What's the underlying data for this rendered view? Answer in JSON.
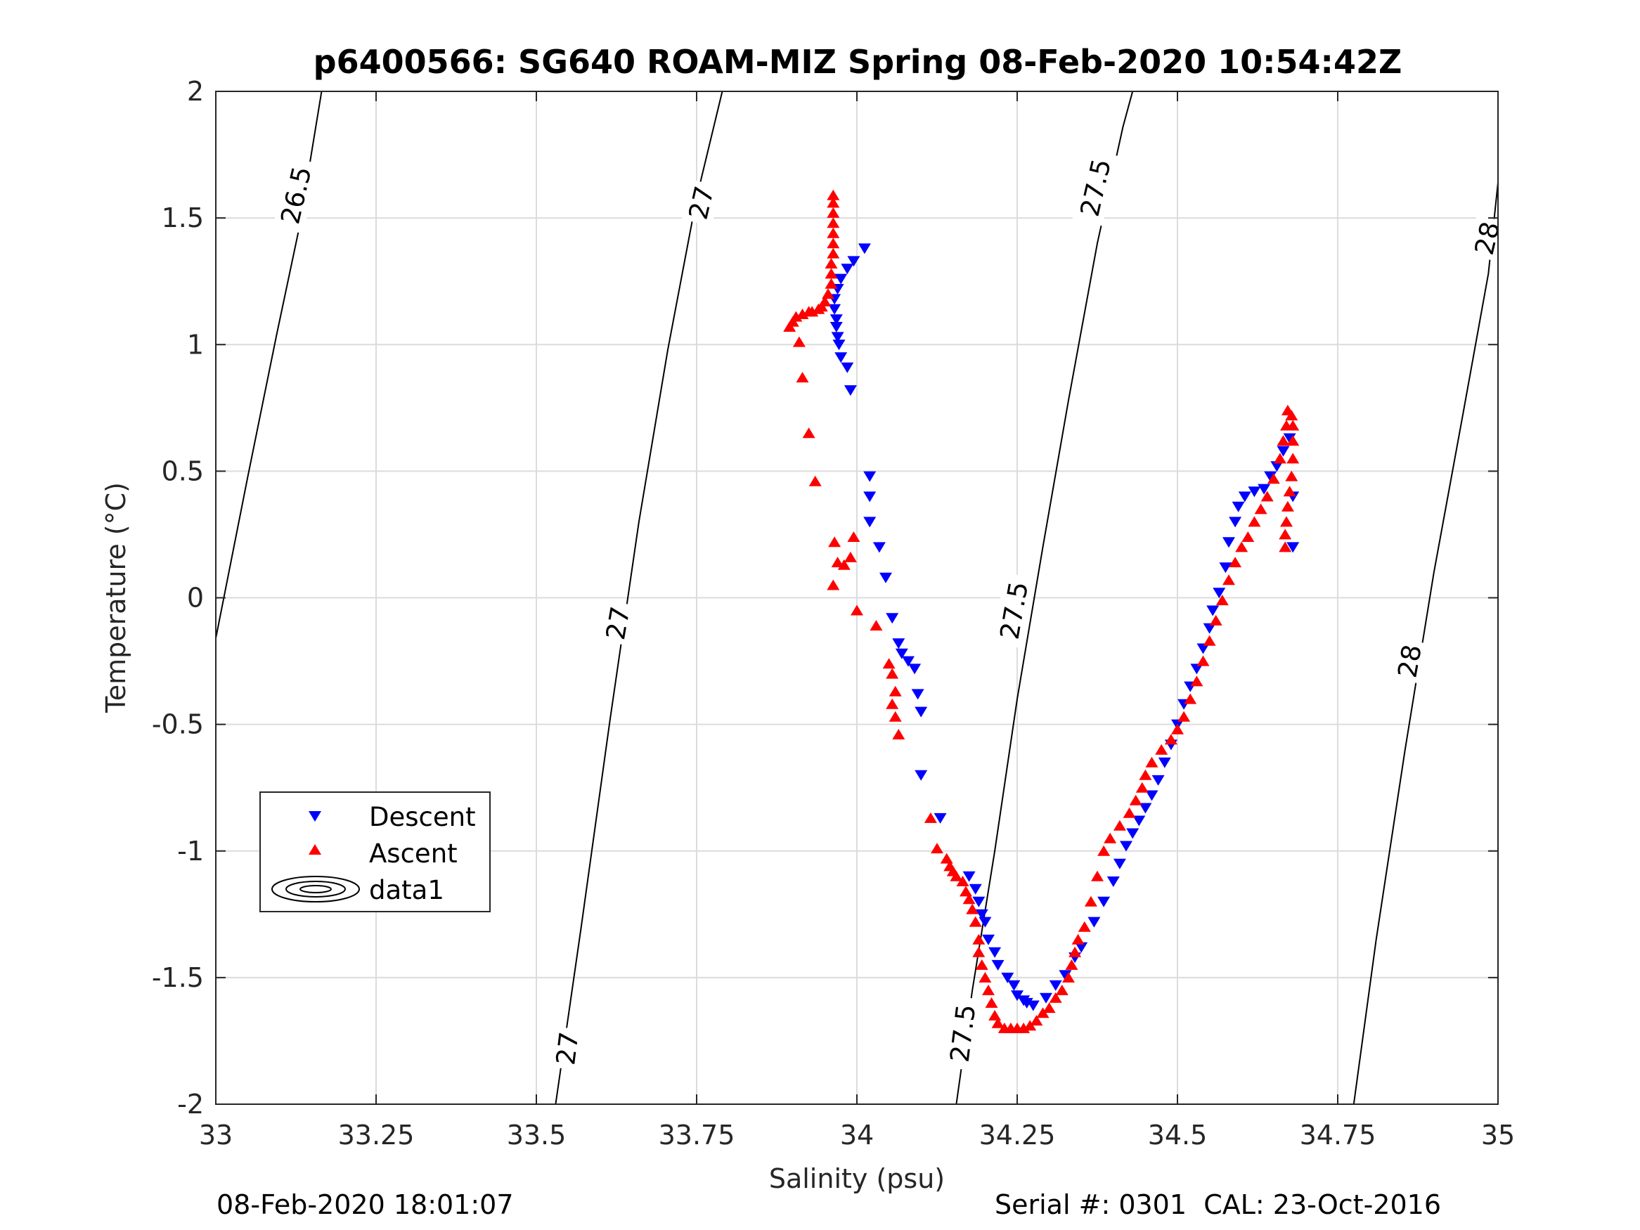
{
  "chart_data": {
    "type": "scatter",
    "title": "p6400566: SG640 ROAM-MIZ Spring 08-Feb-2020 10:54:42Z",
    "xlabel": "Salinity (psu)",
    "ylabel": "Temperature (°C)",
    "xlim": [
      33,
      35
    ],
    "ylim": [
      -2,
      2
    ],
    "xticks": [
      33,
      33.25,
      33.5,
      33.75,
      34,
      34.25,
      34.5,
      34.75,
      35
    ],
    "xtick_labels": [
      "33",
      "33.25",
      "33.5",
      "33.75",
      "34",
      "34.25",
      "34.5",
      "34.75",
      "35"
    ],
    "yticks": [
      -2,
      -1.5,
      -1,
      -0.5,
      0,
      0.5,
      1,
      1.5,
      2
    ],
    "ytick_labels": [
      "-2",
      "-1.5",
      "-1",
      "-0.5",
      "0",
      "0.5",
      "1",
      "1.5",
      "2"
    ],
    "grid": true,
    "legend_position": "lower-left",
    "series": [
      {
        "name": "Descent",
        "marker": "triangle-down",
        "color": "#0000ff",
        "points": [
          [
            34.012,
            1.38
          ],
          [
            33.995,
            1.33
          ],
          [
            33.985,
            1.3
          ],
          [
            33.975,
            1.26
          ],
          [
            33.97,
            1.22
          ],
          [
            33.965,
            1.18
          ],
          [
            33.965,
            1.14
          ],
          [
            33.968,
            1.1
          ],
          [
            33.968,
            1.07
          ],
          [
            33.97,
            1.03
          ],
          [
            33.972,
            1.0
          ],
          [
            33.975,
            0.95
          ],
          [
            33.985,
            0.91
          ],
          [
            33.99,
            0.82
          ],
          [
            34.02,
            0.48
          ],
          [
            34.02,
            0.4
          ],
          [
            34.02,
            0.3
          ],
          [
            34.035,
            0.2
          ],
          [
            34.045,
            0.08
          ],
          [
            34.055,
            -0.08
          ],
          [
            34.065,
            -0.18
          ],
          [
            34.07,
            -0.22
          ],
          [
            34.08,
            -0.25
          ],
          [
            34.09,
            -0.28
          ],
          [
            34.095,
            -0.38
          ],
          [
            34.1,
            -0.45
          ],
          [
            34.1,
            -0.7
          ],
          [
            34.13,
            -0.87
          ],
          [
            34.175,
            -1.1
          ],
          [
            34.185,
            -1.15
          ],
          [
            34.19,
            -1.2
          ],
          [
            34.195,
            -1.25
          ],
          [
            34.2,
            -1.28
          ],
          [
            34.205,
            -1.35
          ],
          [
            34.215,
            -1.4
          ],
          [
            34.22,
            -1.45
          ],
          [
            34.235,
            -1.5
          ],
          [
            34.245,
            -1.53
          ],
          [
            34.25,
            -1.57
          ],
          [
            34.26,
            -1.59
          ],
          [
            34.265,
            -1.6
          ],
          [
            34.275,
            -1.61
          ],
          [
            34.295,
            -1.58
          ],
          [
            34.31,
            -1.53
          ],
          [
            34.325,
            -1.49
          ],
          [
            34.34,
            -1.42
          ],
          [
            34.35,
            -1.38
          ],
          [
            34.37,
            -1.28
          ],
          [
            34.385,
            -1.2
          ],
          [
            34.4,
            -1.12
          ],
          [
            34.41,
            -1.05
          ],
          [
            34.42,
            -0.98
          ],
          [
            34.43,
            -0.93
          ],
          [
            34.44,
            -0.88
          ],
          [
            34.45,
            -0.83
          ],
          [
            34.46,
            -0.78
          ],
          [
            34.47,
            -0.72
          ],
          [
            34.48,
            -0.65
          ],
          [
            34.49,
            -0.58
          ],
          [
            34.5,
            -0.5
          ],
          [
            34.51,
            -0.42
          ],
          [
            34.52,
            -0.35
          ],
          [
            34.53,
            -0.28
          ],
          [
            34.54,
            -0.2
          ],
          [
            34.55,
            -0.12
          ],
          [
            34.555,
            -0.05
          ],
          [
            34.565,
            0.02
          ],
          [
            34.575,
            0.12
          ],
          [
            34.58,
            0.22
          ],
          [
            34.59,
            0.3
          ],
          [
            34.595,
            0.36
          ],
          [
            34.605,
            0.4
          ],
          [
            34.62,
            0.42
          ],
          [
            34.635,
            0.43
          ],
          [
            34.645,
            0.48
          ],
          [
            34.655,
            0.52
          ],
          [
            34.665,
            0.58
          ],
          [
            34.675,
            0.63
          ],
          [
            34.68,
            0.4
          ],
          [
            34.68,
            0.2
          ]
        ]
      },
      {
        "name": "Ascent",
        "marker": "triangle-up",
        "color": "#ff0000",
        "points": [
          [
            33.963,
            1.59
          ],
          [
            33.963,
            1.56
          ],
          [
            33.963,
            1.52
          ],
          [
            33.963,
            1.48
          ],
          [
            33.963,
            1.44
          ],
          [
            33.963,
            1.4
          ],
          [
            33.963,
            1.36
          ],
          [
            33.96,
            1.32
          ],
          [
            33.96,
            1.28
          ],
          [
            33.96,
            1.24
          ],
          [
            33.955,
            1.2
          ],
          [
            33.95,
            1.17
          ],
          [
            33.945,
            1.15
          ],
          [
            33.94,
            1.14
          ],
          [
            33.93,
            1.13
          ],
          [
            33.925,
            1.13
          ],
          [
            33.915,
            1.12
          ],
          [
            33.905,
            1.11
          ],
          [
            33.9,
            1.09
          ],
          [
            33.895,
            1.07
          ],
          [
            33.91,
            1.01
          ],
          [
            33.915,
            0.87
          ],
          [
            33.925,
            0.65
          ],
          [
            33.935,
            0.46
          ],
          [
            33.965,
            0.22
          ],
          [
            33.97,
            0.14
          ],
          [
            33.98,
            0.13
          ],
          [
            33.99,
            0.16
          ],
          [
            33.995,
            0.24
          ],
          [
            33.963,
            0.05
          ],
          [
            34.0,
            -0.05
          ],
          [
            34.03,
            -0.11
          ],
          [
            34.05,
            -0.26
          ],
          [
            34.055,
            -0.3
          ],
          [
            34.06,
            -0.37
          ],
          [
            34.055,
            -0.42
          ],
          [
            34.06,
            -0.47
          ],
          [
            34.065,
            -0.54
          ],
          [
            34.115,
            -0.87
          ],
          [
            34.125,
            -0.99
          ],
          [
            34.14,
            -1.03
          ],
          [
            34.145,
            -1.06
          ],
          [
            34.15,
            -1.08
          ],
          [
            34.155,
            -1.1
          ],
          [
            34.165,
            -1.12
          ],
          [
            34.17,
            -1.16
          ],
          [
            34.175,
            -1.19
          ],
          [
            34.18,
            -1.23
          ],
          [
            34.185,
            -1.28
          ],
          [
            34.19,
            -1.35
          ],
          [
            34.19,
            -1.4
          ],
          [
            34.195,
            -1.45
          ],
          [
            34.2,
            -1.5
          ],
          [
            34.205,
            -1.55
          ],
          [
            34.21,
            -1.6
          ],
          [
            34.215,
            -1.65
          ],
          [
            34.22,
            -1.68
          ],
          [
            34.23,
            -1.7
          ],
          [
            34.24,
            -1.7
          ],
          [
            34.25,
            -1.7
          ],
          [
            34.26,
            -1.7
          ],
          [
            34.27,
            -1.69
          ],
          [
            34.28,
            -1.67
          ],
          [
            34.29,
            -1.64
          ],
          [
            34.3,
            -1.62
          ],
          [
            34.31,
            -1.58
          ],
          [
            34.32,
            -1.55
          ],
          [
            34.33,
            -1.5
          ],
          [
            34.335,
            -1.45
          ],
          [
            34.34,
            -1.4
          ],
          [
            34.345,
            -1.35
          ],
          [
            34.355,
            -1.3
          ],
          [
            34.365,
            -1.2
          ],
          [
            34.375,
            -1.1
          ],
          [
            34.385,
            -1.0
          ],
          [
            34.395,
            -0.95
          ],
          [
            34.41,
            -0.9
          ],
          [
            34.425,
            -0.85
          ],
          [
            34.435,
            -0.8
          ],
          [
            34.445,
            -0.75
          ],
          [
            34.45,
            -0.7
          ],
          [
            34.46,
            -0.65
          ],
          [
            34.475,
            -0.6
          ],
          [
            34.49,
            -0.56
          ],
          [
            34.5,
            -0.52
          ],
          [
            34.51,
            -0.47
          ],
          [
            34.52,
            -0.4
          ],
          [
            34.53,
            -0.33
          ],
          [
            34.54,
            -0.25
          ],
          [
            34.55,
            -0.17
          ],
          [
            34.56,
            -0.09
          ],
          [
            34.57,
            -0.01
          ],
          [
            34.58,
            0.07
          ],
          [
            34.59,
            0.14
          ],
          [
            34.6,
            0.2
          ],
          [
            34.61,
            0.24
          ],
          [
            34.62,
            0.3
          ],
          [
            34.63,
            0.35
          ],
          [
            34.64,
            0.4
          ],
          [
            34.65,
            0.47
          ],
          [
            34.66,
            0.55
          ],
          [
            34.665,
            0.62
          ],
          [
            34.67,
            0.68
          ],
          [
            34.672,
            0.74
          ],
          [
            34.678,
            0.72
          ],
          [
            34.68,
            0.68
          ],
          [
            34.68,
            0.62
          ],
          [
            34.68,
            0.55
          ],
          [
            34.678,
            0.48
          ],
          [
            34.675,
            0.42
          ],
          [
            34.672,
            0.36
          ],
          [
            34.67,
            0.3
          ],
          [
            34.668,
            0.25
          ],
          [
            34.668,
            0.2
          ]
        ]
      }
    ],
    "contour_series_name": "data1",
    "contours": [
      {
        "label": "26.5",
        "points": [
          [
            33.0,
            -0.16
          ],
          [
            33.05,
            0.48
          ],
          [
            33.095,
            1.04
          ],
          [
            33.13,
            1.46
          ],
          [
            33.165,
            2.0
          ]
        ],
        "label_positions": [
          [
            33.125,
            1.59,
            -77
          ]
        ]
      },
      {
        "label": "27",
        "points": [
          [
            33.53,
            -2.0
          ],
          [
            33.57,
            -1.3
          ],
          [
            33.615,
            -0.48
          ],
          [
            33.66,
            0.3
          ],
          [
            33.705,
            0.98
          ],
          [
            33.75,
            1.58
          ],
          [
            33.79,
            2.0
          ]
        ],
        "label_positions": [
          [
            33.548,
            -1.78,
            -83
          ],
          [
            33.627,
            -0.1,
            -80
          ],
          [
            33.757,
            1.56,
            -77
          ]
        ]
      },
      {
        "label": "27.5",
        "points": [
          [
            34.155,
            -2.0
          ],
          [
            34.18,
            -1.55
          ],
          [
            34.215,
            -1.0
          ],
          [
            34.25,
            -0.4
          ],
          [
            34.29,
            0.2
          ],
          [
            34.33,
            0.78
          ],
          [
            34.375,
            1.4
          ],
          [
            34.415,
            1.86
          ],
          [
            34.43,
            2.0
          ]
        ],
        "label_positions": [
          [
            34.165,
            -1.72,
            -83
          ],
          [
            34.245,
            -0.05,
            -80
          ],
          [
            34.372,
            1.62,
            -77
          ]
        ]
      },
      {
        "label": "28",
        "points": [
          [
            34.775,
            -2.0
          ],
          [
            34.81,
            -1.35
          ],
          [
            34.855,
            -0.6
          ],
          [
            34.9,
            0.1
          ],
          [
            34.945,
            0.72
          ],
          [
            34.985,
            1.28
          ],
          [
            35.0,
            1.64
          ]
        ],
        "label_positions": [
          [
            34.862,
            -0.25,
            -80
          ],
          [
            34.983,
            1.42,
            -77
          ]
        ]
      }
    ],
    "legend_entries": [
      "Descent",
      "Ascent",
      "data1"
    ]
  },
  "footer": {
    "left": "08-Feb-2020 18:01:07",
    "right": "Serial #: 0301  CAL: 23-Oct-2016"
  }
}
